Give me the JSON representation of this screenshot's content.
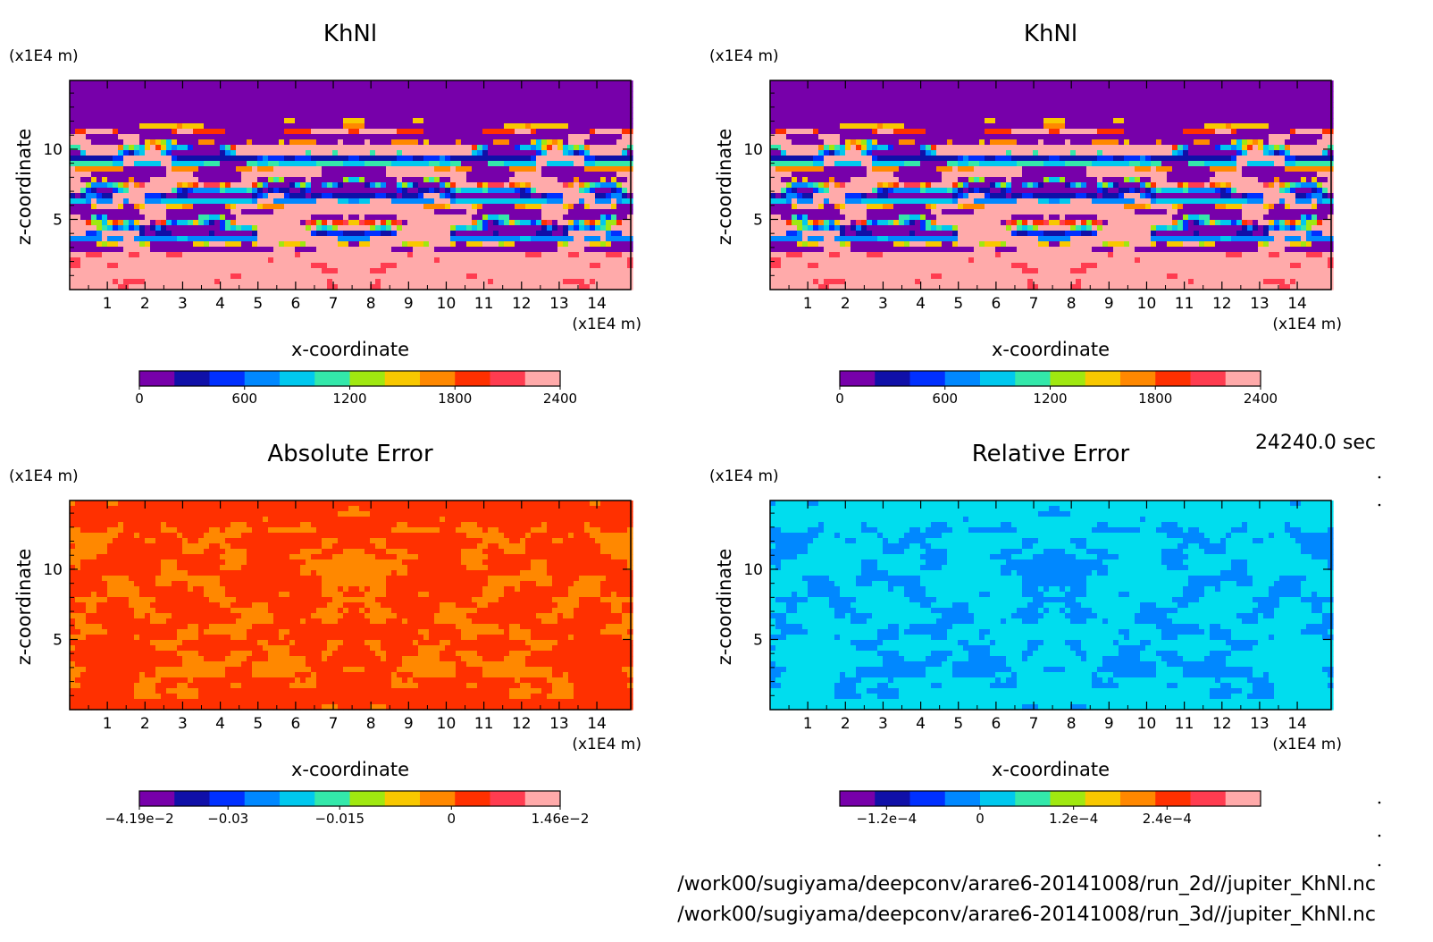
{
  "time_label": "24240.0 sec",
  "footer": {
    "line1": "/work00/sugiyama/deepconv/arare6-20141008/run_2d//jupiter_KhNl.nc",
    "line2": "/work00/sugiyama/deepconv/arare6-20141008/run_3d//jupiter_KhNl.nc"
  },
  "chart_data": [
    {
      "type": "heatmap",
      "title": "KhNl",
      "xlabel": "x-coordinate",
      "ylabel": "z-coordinate",
      "x_unit": "(x1E4 m)",
      "y_unit": "(x1E4 m)",
      "xlim": [
        0,
        14.9
      ],
      "ylim": [
        0,
        14.9
      ],
      "x_ticks": [
        "1",
        "2",
        "3",
        "4",
        "5",
        "6",
        "7",
        "8",
        "9",
        "10",
        "11",
        "12",
        "13",
        "14"
      ],
      "y_ticks": [
        "5",
        "10"
      ],
      "field": "khnl",
      "colorbar": {
        "range": [
          0,
          2400
        ],
        "colors": [
          "#7700aa",
          "#1010a8",
          "#0030ff",
          "#0088ff",
          "#00c8ee",
          "#33e8aa",
          "#a0e810",
          "#f8c800",
          "#ff8800",
          "#ff3000",
          "#ff3c50",
          "#ffaaaa"
        ],
        "tick_values": [
          0,
          600,
          1200,
          1800,
          2400
        ],
        "tick_labels": [
          "0",
          "600",
          "1200",
          "1800",
          "2400"
        ]
      }
    },
    {
      "type": "heatmap",
      "title": "KhNl",
      "xlabel": "x-coordinate",
      "ylabel": "z-coordinate",
      "x_unit": "(x1E4 m)",
      "y_unit": "(x1E4 m)",
      "xlim": [
        0,
        14.9
      ],
      "ylim": [
        0,
        14.9
      ],
      "x_ticks": [
        "1",
        "2",
        "3",
        "4",
        "5",
        "6",
        "7",
        "8",
        "9",
        "10",
        "11",
        "12",
        "13",
        "14"
      ],
      "y_ticks": [
        "5",
        "10"
      ],
      "field": "khnl",
      "colorbar": {
        "range": [
          0,
          2400
        ],
        "colors": [
          "#7700aa",
          "#1010a8",
          "#0030ff",
          "#0088ff",
          "#00c8ee",
          "#33e8aa",
          "#a0e810",
          "#f8c800",
          "#ff8800",
          "#ff3000",
          "#ff3c50",
          "#ffaaaa"
        ],
        "tick_values": [
          0,
          600,
          1200,
          1800,
          2400
        ],
        "tick_labels": [
          "0",
          "600",
          "1200",
          "1800",
          "2400"
        ]
      }
    },
    {
      "type": "heatmap",
      "title": "Absolute Error",
      "xlabel": "x-coordinate",
      "ylabel": "z-coordinate",
      "x_unit": "(x1E4 m)",
      "y_unit": "(x1E4 m)",
      "xlim": [
        0,
        14.9
      ],
      "ylim": [
        0,
        14.9
      ],
      "x_ticks": [
        "1",
        "2",
        "3",
        "4",
        "5",
        "6",
        "7",
        "8",
        "9",
        "10",
        "11",
        "12",
        "13",
        "14"
      ],
      "y_ticks": [
        "5",
        "10"
      ],
      "field": "abs",
      "background_color": "#ff3000",
      "patch_color": "#ff8800",
      "colorbar": {
        "range": [
          -0.0419,
          0.0146
        ],
        "colors": [
          "#7700aa",
          "#1010a8",
          "#0030ff",
          "#0088ff",
          "#00c8ee",
          "#33e8aa",
          "#a0e810",
          "#f8c800",
          "#ff8800",
          "#ff3000",
          "#ff3c50",
          "#ffaaaa"
        ],
        "tick_values": [
          -0.0419,
          -0.03,
          -0.015,
          0,
          0.0146
        ],
        "tick_labels": [
          "−4.19e−2",
          "−0.03",
          "−0.015",
          "0",
          "1.46e−2"
        ]
      }
    },
    {
      "type": "heatmap",
      "title": "Relative Error",
      "xlabel": "x-coordinate",
      "ylabel": "z-coordinate",
      "x_unit": "(x1E4 m)",
      "y_unit": "(x1E4 m)",
      "xlim": [
        0,
        14.9
      ],
      "ylim": [
        0,
        14.9
      ],
      "x_ticks": [
        "1",
        "2",
        "3",
        "4",
        "5",
        "6",
        "7",
        "8",
        "9",
        "10",
        "11",
        "12",
        "13",
        "14"
      ],
      "y_ticks": [
        "5",
        "10"
      ],
      "field": "rel",
      "background_color": "#00ddee",
      "patch_color": "#0088ff",
      "colorbar": {
        "range": [
          -0.00018,
          0.00036
        ],
        "colors": [
          "#7700aa",
          "#1010a8",
          "#0030ff",
          "#0088ff",
          "#00c8ee",
          "#33e8aa",
          "#a0e810",
          "#f8c800",
          "#ff8800",
          "#ff3000",
          "#ff3c50",
          "#ffaaaa"
        ],
        "tick_values": [
          -0.00012,
          0,
          0.00012,
          0.00024
        ],
        "tick_labels": [
          "−1.2e−4",
          "0",
          "1.2e−4",
          "2.4e−4"
        ]
      }
    }
  ]
}
